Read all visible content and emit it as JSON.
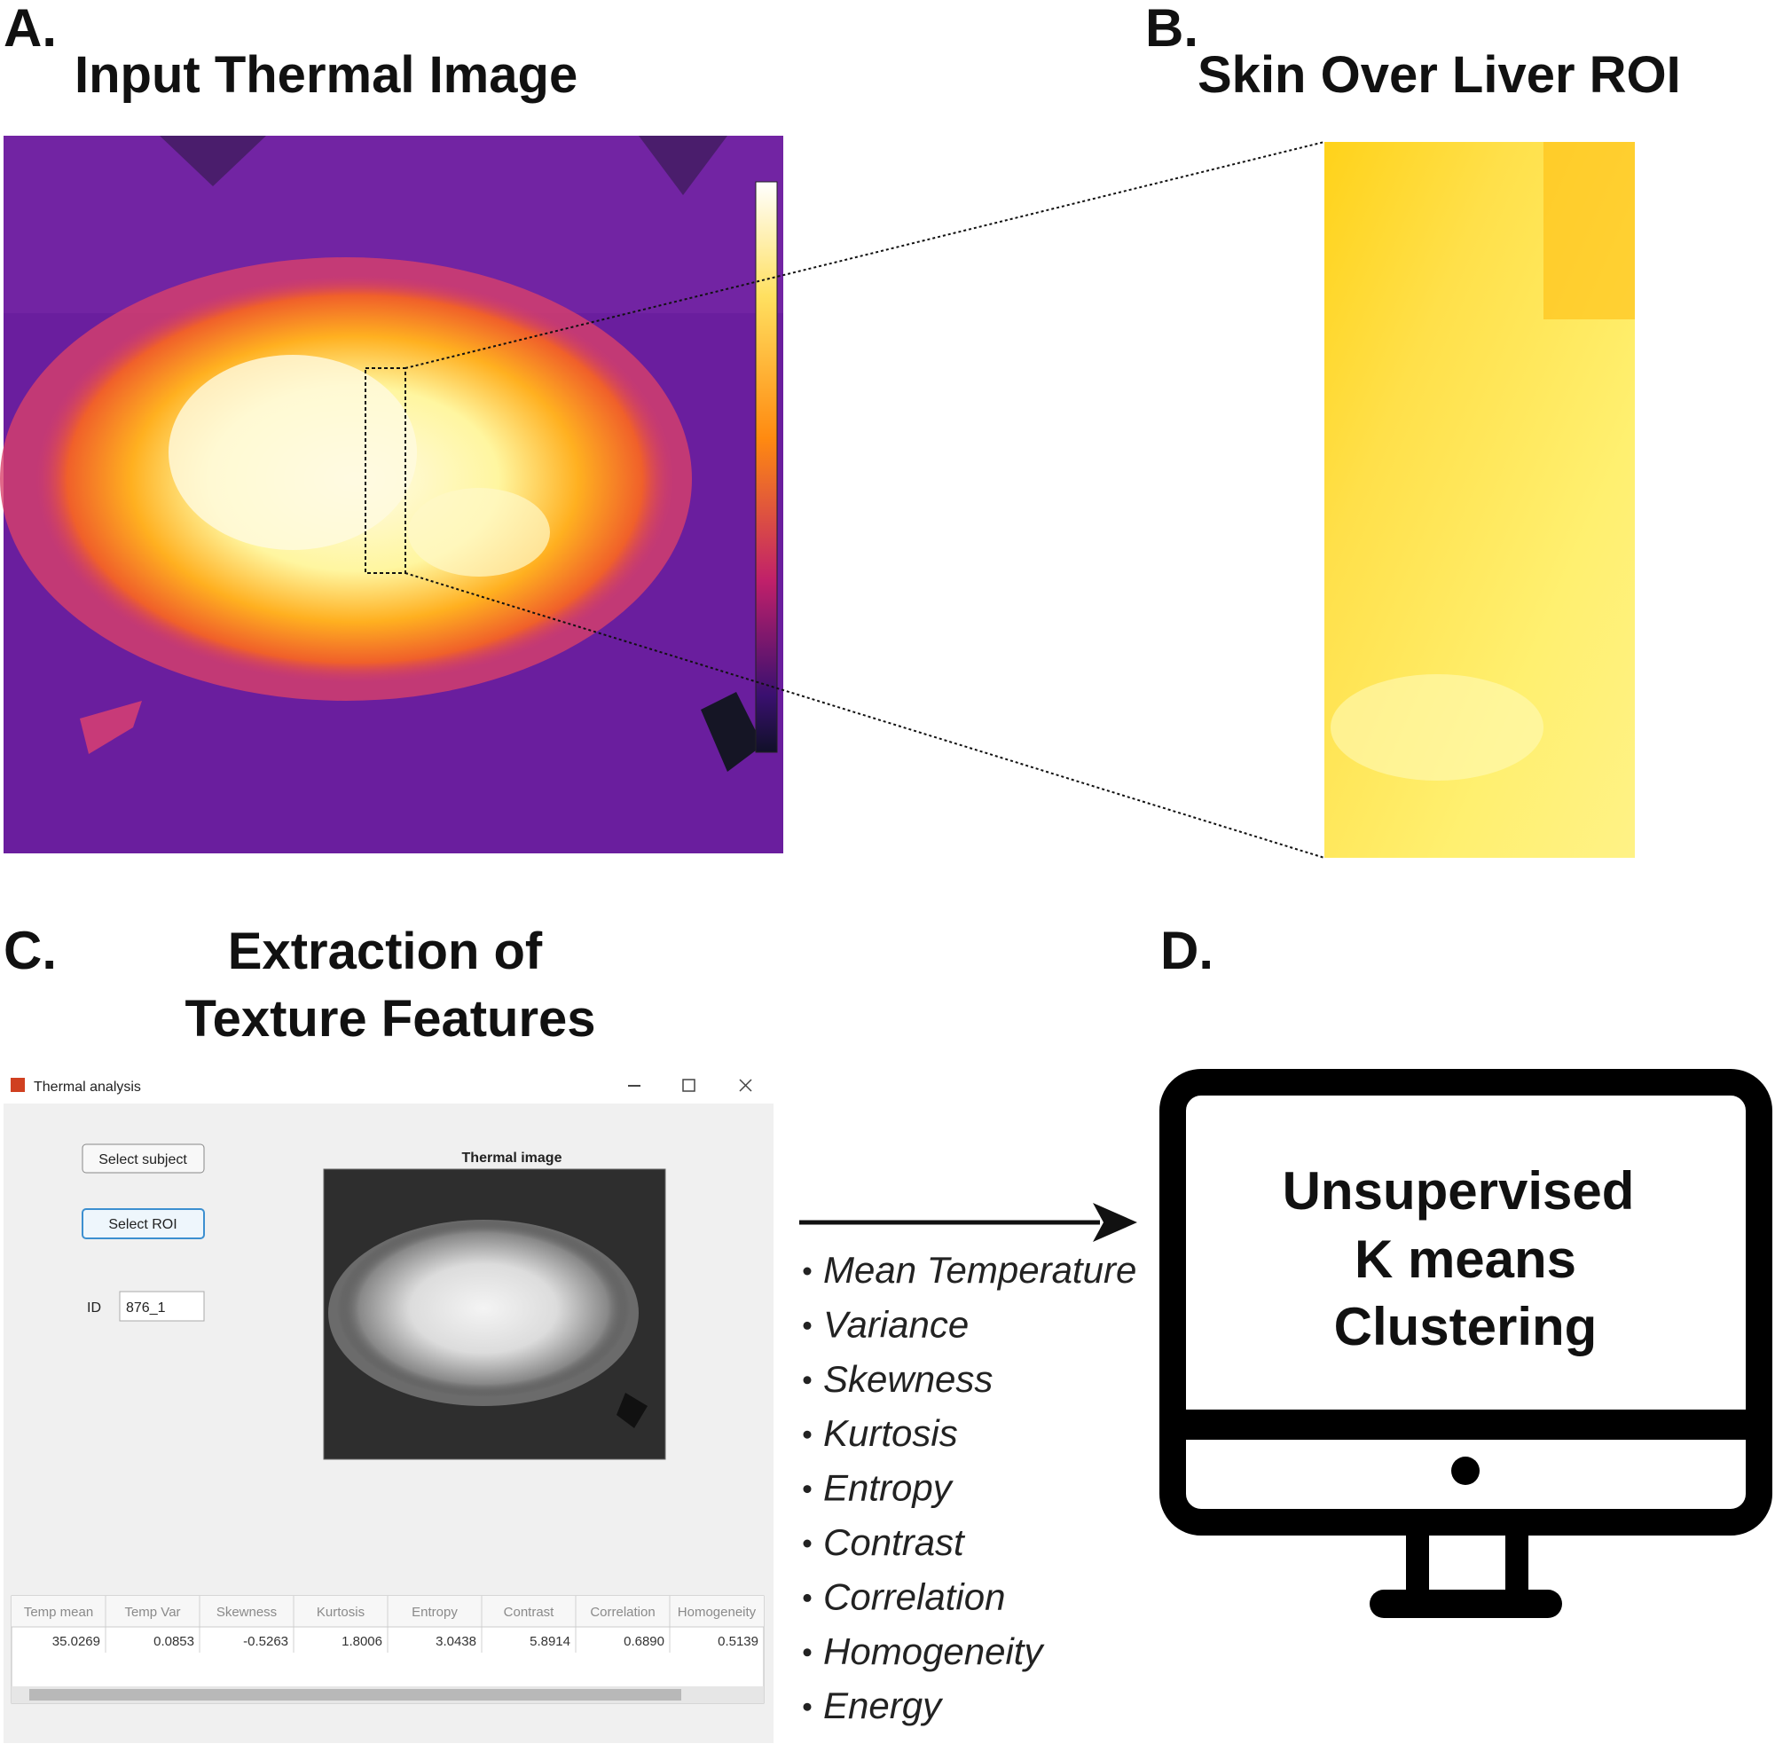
{
  "panel_a": {
    "label": "A.",
    "title": "Input Thermal Image"
  },
  "panel_b": {
    "label": "B.",
    "title": "Skin Over Liver ROI"
  },
  "panel_c": {
    "label": "C.",
    "title_lines": [
      "Extraction of",
      "Texture Features"
    ],
    "window": {
      "title": "Thermal analysis",
      "buttons": [
        "Select subject",
        "Select ROI"
      ],
      "id_label": "ID",
      "id_value": "876_1",
      "image_title": "Thermal image",
      "table": {
        "headers": [
          "Temp mean",
          "Temp Var",
          "Skewness",
          "Kurtosis",
          "Entropy",
          "Contrast",
          "Correlation",
          "Homogeneity"
        ],
        "rows": [
          [
            "35.0269",
            "0.0853",
            "-0.5263",
            "1.8006",
            "3.0438",
            "5.8914",
            "0.6890",
            "0.5139"
          ]
        ]
      }
    }
  },
  "features": [
    "Mean Temperature",
    "Variance",
    "Skewness",
    "Kurtosis",
    "Entropy",
    "Contrast",
    "Correlation",
    "Homogeneity",
    "Energy"
  ],
  "panel_d": {
    "label": "D.",
    "text_lines": [
      "Unsupervised",
      "K means",
      "Clustering"
    ]
  }
}
